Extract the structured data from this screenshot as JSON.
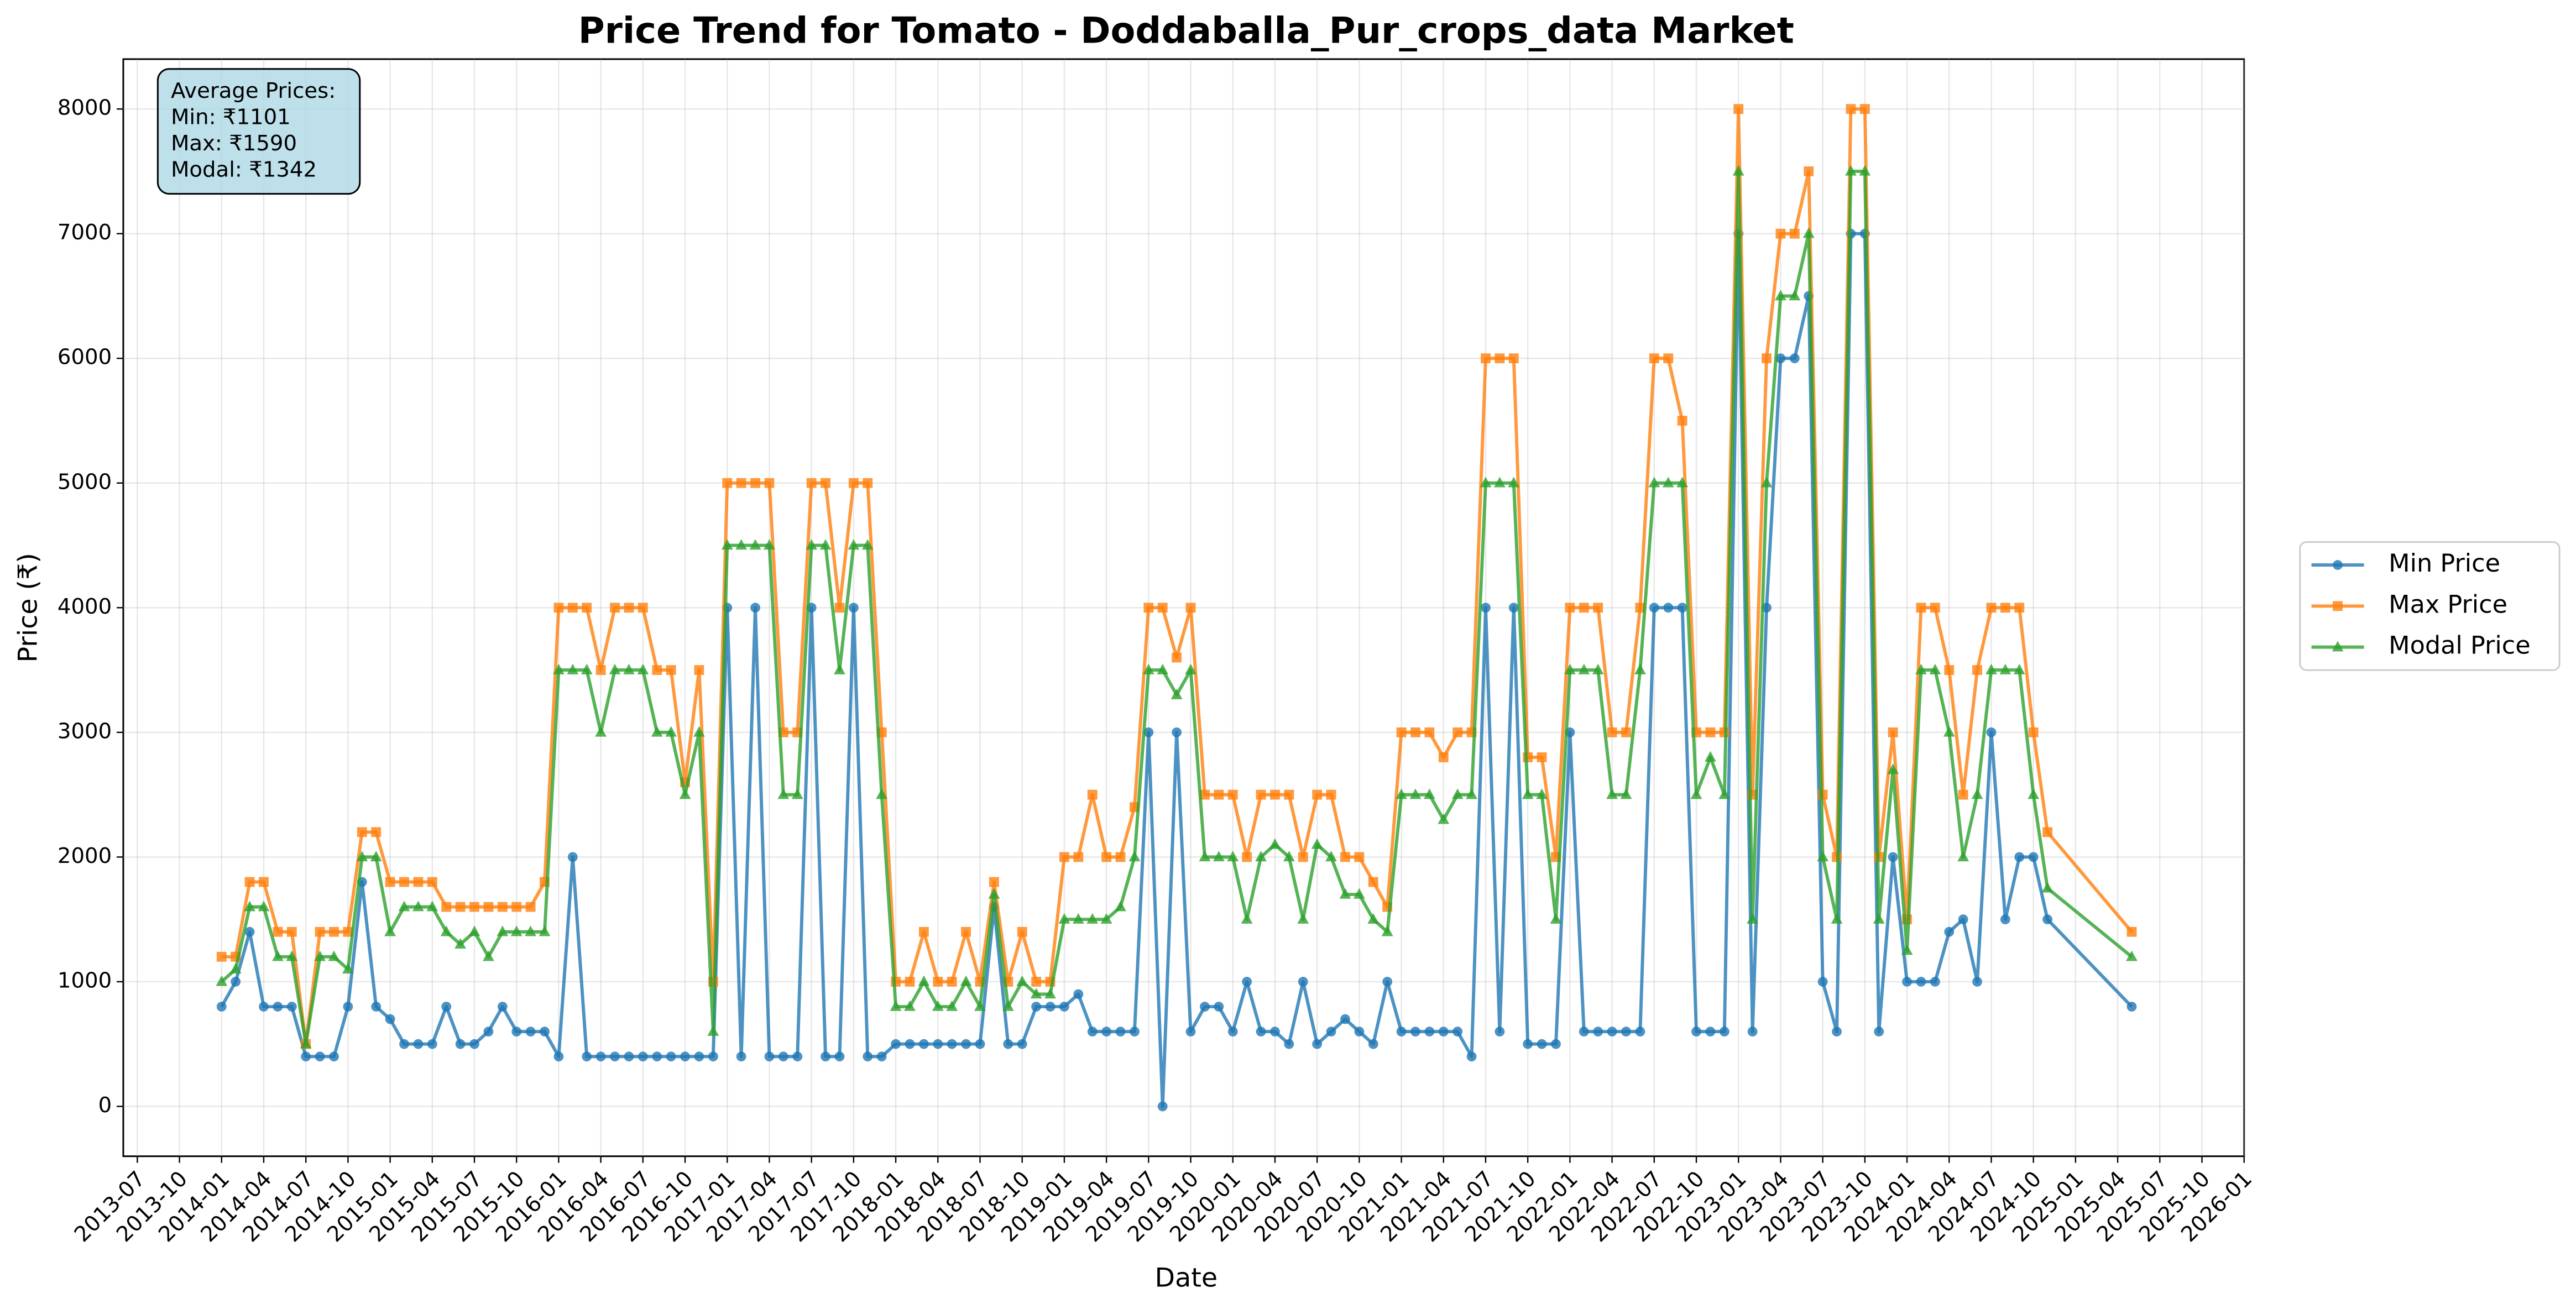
{
  "chart_data": {
    "type": "line",
    "title": "Price Trend for Tomato - Doddaballa_Pur_crops_data Market",
    "x_label": "Date",
    "y_label": "Price (₹)",
    "annotation": [
      "Average Prices:",
      "Min: ₹1101",
      "Max: ₹1590",
      "Modal: ₹1342"
    ],
    "x": [
      "2014-01",
      "2014-02",
      "2014-03",
      "2014-04",
      "2014-05",
      "2014-06",
      "2014-07",
      "2014-08",
      "2014-09",
      "2014-10",
      "2014-11",
      "2014-12",
      "2015-01",
      "2015-02",
      "2015-03",
      "2015-04",
      "2015-05",
      "2015-06",
      "2015-07",
      "2015-08",
      "2015-09",
      "2015-10",
      "2015-11",
      "2015-12",
      "2016-01",
      "2016-02",
      "2016-03",
      "2016-04",
      "2016-05",
      "2016-06",
      "2016-07",
      "2016-08",
      "2016-09",
      "2016-10",
      "2016-11",
      "2016-12",
      "2017-01",
      "2017-02",
      "2017-03",
      "2017-04",
      "2017-05",
      "2017-06",
      "2017-07",
      "2017-08",
      "2017-09",
      "2017-10",
      "2017-11",
      "2017-12",
      "2018-01",
      "2018-02",
      "2018-03",
      "2018-04",
      "2018-05",
      "2018-06",
      "2018-07",
      "2018-08",
      "2018-09",
      "2018-10",
      "2018-11",
      "2018-12",
      "2019-01",
      "2019-02",
      "2019-03",
      "2019-04",
      "2019-05",
      "2019-06",
      "2019-07",
      "2019-08",
      "2019-09",
      "2019-10",
      "2019-11",
      "2019-12",
      "2020-01",
      "2020-02",
      "2020-03",
      "2020-04",
      "2020-05",
      "2020-06",
      "2020-07",
      "2020-08",
      "2020-09",
      "2020-10",
      "2020-11",
      "2020-12",
      "2021-01",
      "2021-02",
      "2021-03",
      "2021-04",
      "2021-05",
      "2021-06",
      "2021-07",
      "2021-08",
      "2021-09",
      "2021-10",
      "2021-11",
      "2021-12",
      "2022-01",
      "2022-02",
      "2022-03",
      "2022-04",
      "2022-05",
      "2022-06",
      "2022-07",
      "2022-08",
      "2022-09",
      "2022-10",
      "2022-11",
      "2022-12",
      "2023-01",
      "2023-02",
      "2023-03",
      "2023-04",
      "2023-05",
      "2023-06",
      "2023-07",
      "2023-08",
      "2023-09",
      "2023-10",
      "2023-11",
      "2023-12",
      "2024-01",
      "2024-02",
      "2024-03",
      "2024-04",
      "2024-05",
      "2024-06",
      "2024-07",
      "2024-08",
      "2024-09",
      "2024-10",
      "2024-11",
      "2025-05"
    ],
    "series": [
      {
        "name": "Min Price",
        "color": "#1f77b4",
        "marker": "circle",
        "values": [
          800,
          1000,
          1400,
          800,
          800,
          800,
          400,
          400,
          400,
          800,
          1800,
          800,
          700,
          500,
          500,
          500,
          800,
          500,
          500,
          600,
          800,
          600,
          600,
          600,
          400,
          2000,
          400,
          400,
          400,
          400,
          400,
          400,
          400,
          400,
          400,
          400,
          4000,
          400,
          4000,
          400,
          400,
          400,
          4000,
          400,
          400,
          4000,
          400,
          400,
          500,
          500,
          500,
          500,
          500,
          500,
          500,
          1600,
          500,
          500,
          800,
          800,
          800,
          900,
          600,
          600,
          600,
          600,
          3000,
          0,
          3000,
          600,
          800,
          800,
          600,
          1000,
          600,
          600,
          500,
          1000,
          500,
          600,
          700,
          600,
          500,
          1000,
          600,
          600,
          600,
          600,
          600,
          400,
          4000,
          600,
          4000,
          500,
          500,
          500,
          3000,
          600,
          600,
          600,
          600,
          600,
          4000,
          4000,
          4000,
          600,
          600,
          600,
          7000,
          600,
          4000,
          6000,
          6000,
          6500,
          1000,
          600,
          7000,
          7000,
          600,
          2000,
          1000,
          1000,
          1000,
          1400,
          1500,
          1000,
          3000,
          1500,
          2000,
          2000,
          1500,
          800
        ]
      },
      {
        "name": "Max Price",
        "color": "#ff7f0e",
        "marker": "square",
        "values": [
          1200,
          1200,
          1800,
          1800,
          1400,
          1400,
          500,
          1400,
          1400,
          1400,
          2200,
          2200,
          1800,
          1800,
          1800,
          1800,
          1600,
          1600,
          1600,
          1600,
          1600,
          1600,
          1600,
          1800,
          4000,
          4000,
          4000,
          3500,
          4000,
          4000,
          4000,
          3500,
          3500,
          2600,
          3500,
          1000,
          5000,
          5000,
          5000,
          5000,
          3000,
          3000,
          5000,
          5000,
          4000,
          5000,
          5000,
          3000,
          1000,
          1000,
          1400,
          1000,
          1000,
          1400,
          1000,
          1800,
          1000,
          1400,
          1000,
          1000,
          2000,
          2000,
          2500,
          2000,
          2000,
          2400,
          4000,
          4000,
          3600,
          4000,
          2500,
          2500,
          2500,
          2000,
          2500,
          2500,
          2500,
          2000,
          2500,
          2500,
          2000,
          2000,
          1800,
          1600,
          3000,
          3000,
          3000,
          2800,
          3000,
          3000,
          6000,
          6000,
          6000,
          2800,
          2800,
          2000,
          4000,
          4000,
          4000,
          3000,
          3000,
          4000,
          6000,
          6000,
          5500,
          3000,
          3000,
          3000,
          8000,
          2500,
          6000,
          7000,
          7000,
          7500,
          2500,
          2000,
          8000,
          8000,
          2000,
          3000,
          1500,
          4000,
          4000,
          3500,
          2500,
          3500,
          4000,
          4000,
          4000,
          3000,
          2200,
          1400
        ]
      },
      {
        "name": "Modal Price",
        "color": "#2ca02c",
        "marker": "triangle",
        "values": [
          1000,
          1100,
          1600,
          1600,
          1200,
          1200,
          500,
          1200,
          1200,
          1100,
          2000,
          2000,
          1400,
          1600,
          1600,
          1600,
          1400,
          1300,
          1400,
          1200,
          1400,
          1400,
          1400,
          1400,
          3500,
          3500,
          3500,
          3000,
          3500,
          3500,
          3500,
          3000,
          3000,
          2500,
          3000,
          600,
          4500,
          4500,
          4500,
          4500,
          2500,
          2500,
          4500,
          4500,
          3500,
          4500,
          4500,
          2500,
          800,
          800,
          1000,
          800,
          800,
          1000,
          800,
          1700,
          800,
          1000,
          900,
          900,
          1500,
          1500,
          1500,
          1500,
          1600,
          2000,
          3500,
          3500,
          3300,
          3500,
          2000,
          2000,
          2000,
          1500,
          2000,
          2100,
          2000,
          1500,
          2100,
          2000,
          1700,
          1700,
          1500,
          1400,
          2500,
          2500,
          2500,
          2300,
          2500,
          2500,
          5000,
          5000,
          5000,
          2500,
          2500,
          1500,
          3500,
          3500,
          3500,
          2500,
          2500,
          3500,
          5000,
          5000,
          5000,
          2500,
          2800,
          2500,
          7500,
          1500,
          5000,
          6500,
          6500,
          7000,
          2000,
          1500,
          7500,
          7500,
          1500,
          2700,
          1250,
          3500,
          3500,
          3000,
          2000,
          2500,
          3500,
          3500,
          3500,
          2500,
          1750,
          1200
        ]
      }
    ],
    "xlim": [
      "2013-06",
      "2026-01"
    ],
    "xticks": [
      "2013-07",
      "2013-10",
      "2014-01",
      "2014-04",
      "2014-07",
      "2014-10",
      "2015-01",
      "2015-04",
      "2015-07",
      "2015-10",
      "2016-01",
      "2016-04",
      "2016-07",
      "2016-10",
      "2017-01",
      "2017-04",
      "2017-07",
      "2017-10",
      "2018-01",
      "2018-04",
      "2018-07",
      "2018-10",
      "2019-01",
      "2019-04",
      "2019-07",
      "2019-10",
      "2020-01",
      "2020-04",
      "2020-07",
      "2020-10",
      "2021-01",
      "2021-04",
      "2021-07",
      "2021-10",
      "2022-01",
      "2022-04",
      "2022-07",
      "2022-10",
      "2023-01",
      "2023-04",
      "2023-07",
      "2023-10",
      "2024-01",
      "2024-04",
      "2024-07",
      "2024-10",
      "2025-01",
      "2025-04",
      "2025-07",
      "2025-10",
      "2026-01"
    ],
    "ylim": [
      -400,
      8400
    ],
    "yticks": [
      0,
      1000,
      2000,
      3000,
      4000,
      5000,
      6000,
      7000,
      8000
    ],
    "grid": true,
    "legend_position": "outside-right"
  }
}
